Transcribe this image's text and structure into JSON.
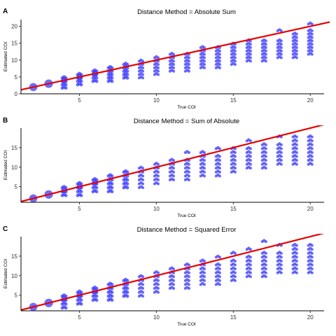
{
  "chart_data": [
    {
      "type": "scatter",
      "panel_label": "A",
      "title": "Distance Method = Absolute Sum",
      "xlabel": "True COI",
      "ylabel": "Estimated COI",
      "xlim": [
        1.2,
        20.9
      ],
      "ylim": [
        0,
        22
      ],
      "xticks": [
        5,
        10,
        15,
        20
      ],
      "yticks": [
        0,
        5,
        10,
        15,
        20
      ],
      "grid": false,
      "point_color": "#3333ff",
      "line_color": "#e80000",
      "identity_line": {
        "slope": 1,
        "intercept": 0
      },
      "series": [
        {
          "x": 2,
          "y": [
            2,
            2
          ]
        },
        {
          "x": 3,
          "y": [
            3,
            3,
            3
          ]
        },
        {
          "x": 4,
          "y": [
            2,
            3,
            4,
            4,
            5
          ]
        },
        {
          "x": 5,
          "y": [
            3,
            4,
            5,
            5,
            6
          ]
        },
        {
          "x": 6,
          "y": [
            4,
            5,
            6,
            6,
            7
          ]
        },
        {
          "x": 7,
          "y": [
            4,
            5,
            6,
            7,
            8
          ]
        },
        {
          "x": 8,
          "y": [
            5,
            6,
            7,
            8,
            9
          ]
        },
        {
          "x": 9,
          "y": [
            5,
            6,
            7,
            8,
            9,
            10
          ]
        },
        {
          "x": 10,
          "y": [
            6,
            7,
            8,
            9,
            10,
            11
          ]
        },
        {
          "x": 11,
          "y": [
            7,
            8,
            9,
            10,
            11,
            12
          ]
        },
        {
          "x": 12,
          "y": [
            7,
            8,
            9,
            10,
            11,
            12
          ]
        },
        {
          "x": 13,
          "y": [
            8,
            9,
            10,
            11,
            12,
            13,
            14
          ]
        },
        {
          "x": 14,
          "y": [
            8,
            9,
            10,
            11,
            12,
            13,
            14
          ]
        },
        {
          "x": 15,
          "y": [
            9,
            10,
            11,
            12,
            13,
            14,
            15
          ]
        },
        {
          "x": 16,
          "y": [
            10,
            11,
            12,
            13,
            14,
            15,
            16
          ]
        },
        {
          "x": 17,
          "y": [
            10,
            11,
            12,
            13,
            14,
            15,
            16
          ]
        },
        {
          "x": 18,
          "y": [
            11,
            12,
            13,
            14,
            15,
            16,
            19
          ]
        },
        {
          "x": 19,
          "y": [
            11,
            12,
            13,
            14,
            15,
            16,
            17,
            18
          ]
        },
        {
          "x": 20,
          "y": [
            12,
            13,
            14,
            15,
            16,
            17,
            18,
            19,
            21
          ]
        }
      ]
    },
    {
      "type": "scatter",
      "panel_label": "B",
      "title": "Distance Method = Sum of Absolute",
      "xlabel": "True COI",
      "ylabel": "Estimated COI",
      "xlim": [
        1.2,
        20.9
      ],
      "ylim": [
        1,
        20
      ],
      "xticks": [
        5,
        10,
        15,
        20
      ],
      "yticks": [
        5,
        10,
        15
      ],
      "grid": false,
      "point_color": "#3333ff",
      "line_color": "#e80000",
      "identity_line": {
        "slope": 1,
        "intercept": 0
      },
      "series": [
        {
          "x": 2,
          "y": [
            2,
            2
          ]
        },
        {
          "x": 3,
          "y": [
            3,
            3,
            3
          ]
        },
        {
          "x": 4,
          "y": [
            3,
            4,
            4,
            5
          ]
        },
        {
          "x": 5,
          "y": [
            3,
            4,
            5,
            5,
            6
          ]
        },
        {
          "x": 6,
          "y": [
            4,
            5,
            6,
            6,
            7
          ]
        },
        {
          "x": 7,
          "y": [
            4,
            5,
            6,
            7,
            8
          ]
        },
        {
          "x": 8,
          "y": [
            5,
            6,
            7,
            8,
            9
          ]
        },
        {
          "x": 9,
          "y": [
            5,
            6,
            7,
            8,
            9,
            10
          ]
        },
        {
          "x": 10,
          "y": [
            6,
            7,
            8,
            9,
            10,
            11
          ]
        },
        {
          "x": 11,
          "y": [
            7,
            8,
            9,
            10,
            11,
            12
          ]
        },
        {
          "x": 12,
          "y": [
            7,
            8,
            9,
            10,
            11,
            12,
            14
          ]
        },
        {
          "x": 13,
          "y": [
            8,
            9,
            10,
            11,
            12,
            13,
            14
          ]
        },
        {
          "x": 14,
          "y": [
            8,
            9,
            10,
            11,
            12,
            13,
            15
          ]
        },
        {
          "x": 15,
          "y": [
            9,
            10,
            11,
            12,
            13,
            14,
            15
          ]
        },
        {
          "x": 16,
          "y": [
            10,
            11,
            12,
            13,
            14,
            15,
            17
          ]
        },
        {
          "x": 17,
          "y": [
            10,
            11,
            12,
            13,
            14,
            15,
            16
          ]
        },
        {
          "x": 18,
          "y": [
            11,
            12,
            13,
            14,
            15,
            16,
            18
          ]
        },
        {
          "x": 19,
          "y": [
            11,
            12,
            13,
            14,
            15,
            16,
            17,
            18
          ]
        },
        {
          "x": 20,
          "y": [
            11,
            12,
            13,
            14,
            15,
            16,
            17,
            18
          ]
        }
      ]
    },
    {
      "type": "scatter",
      "panel_label": "C",
      "title": "Distance Method = Squared Error",
      "xlabel": "True COI",
      "ylabel": "Estimated COI",
      "xlim": [
        1.2,
        20.9
      ],
      "ylim": [
        1,
        20
      ],
      "xticks": [
        5,
        10,
        15,
        20
      ],
      "yticks": [
        5,
        10,
        15
      ],
      "grid": false,
      "point_color": "#3333ff",
      "line_color": "#e80000",
      "identity_line": {
        "slope": 1,
        "intercept": 0
      },
      "series": [
        {
          "x": 2,
          "y": [
            2,
            2
          ]
        },
        {
          "x": 3,
          "y": [
            3,
            3,
            3
          ]
        },
        {
          "x": 4,
          "y": [
            2,
            3,
            4,
            4,
            5
          ]
        },
        {
          "x": 5,
          "y": [
            3,
            4,
            5,
            5,
            6
          ]
        },
        {
          "x": 6,
          "y": [
            4,
            5,
            6,
            6,
            7
          ]
        },
        {
          "x": 7,
          "y": [
            4,
            5,
            6,
            7,
            8
          ]
        },
        {
          "x": 8,
          "y": [
            5,
            6,
            7,
            8,
            9
          ]
        },
        {
          "x": 9,
          "y": [
            5,
            6,
            7,
            8,
            9,
            10
          ]
        },
        {
          "x": 10,
          "y": [
            6,
            7,
            8,
            9,
            10,
            11
          ]
        },
        {
          "x": 11,
          "y": [
            7,
            8,
            9,
            10,
            11,
            12
          ]
        },
        {
          "x": 12,
          "y": [
            7,
            8,
            9,
            10,
            11,
            12,
            13
          ]
        },
        {
          "x": 13,
          "y": [
            8,
            9,
            10,
            11,
            12,
            13,
            14
          ]
        },
        {
          "x": 14,
          "y": [
            8,
            9,
            10,
            11,
            12,
            13,
            15
          ]
        },
        {
          "x": 15,
          "y": [
            9,
            10,
            11,
            12,
            13,
            14,
            16
          ]
        },
        {
          "x": 16,
          "y": [
            10,
            11,
            12,
            13,
            14,
            15,
            17
          ]
        },
        {
          "x": 17,
          "y": [
            10,
            11,
            12,
            13,
            14,
            15,
            16,
            19
          ]
        },
        {
          "x": 18,
          "y": [
            11,
            12,
            13,
            14,
            15,
            16,
            18
          ]
        },
        {
          "x": 19,
          "y": [
            11,
            12,
            13,
            14,
            15,
            16,
            17,
            18
          ]
        },
        {
          "x": 20,
          "y": [
            11,
            12,
            13,
            14,
            15,
            16,
            17,
            18
          ]
        }
      ]
    }
  ]
}
